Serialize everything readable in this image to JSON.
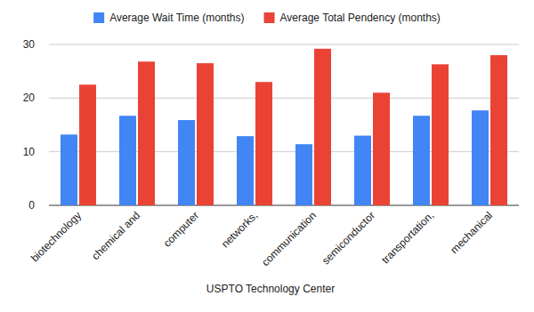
{
  "chart_data": {
    "type": "bar",
    "x_label": "USPTO Technology Center",
    "categories": [
      "biotechnology",
      "chemical and",
      "computer",
      "networks,",
      "communication",
      "semiconductor",
      "transportation,",
      "mechanical"
    ],
    "series": [
      {
        "name": "Average Wait Time (months)",
        "color": "#4285f4",
        "values": [
          13.2,
          16.7,
          15.9,
          12.9,
          11.4,
          13.0,
          16.7,
          17.7
        ]
      },
      {
        "name": "Average Total Pendency (months)",
        "color": "#ea4335",
        "values": [
          22.5,
          26.8,
          26.5,
          23.0,
          29.2,
          21.0,
          26.3,
          28.0
        ]
      }
    ],
    "ylim": [
      0,
      30
    ],
    "yticks": [
      0,
      10,
      20,
      30
    ],
    "grid": true,
    "legend": "top"
  }
}
